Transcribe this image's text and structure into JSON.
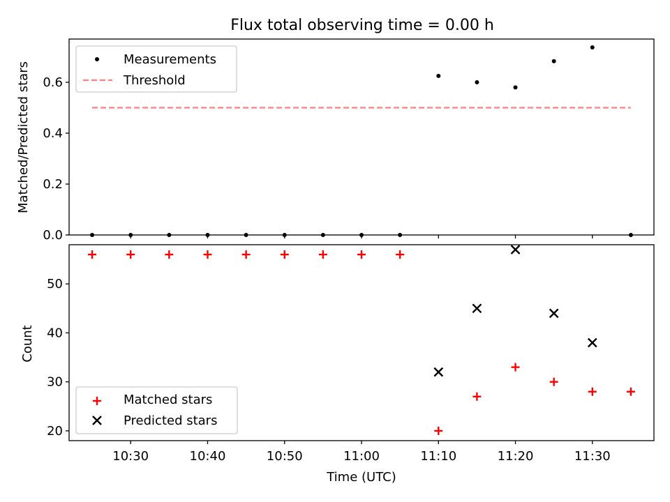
{
  "chart_data": [
    {
      "type": "scatter",
      "title": "Flux total observing time = 0.00 h",
      "xlabel": "",
      "ylabel": "Matched/Predicted stars",
      "ylim": [
        0,
        0.77
      ],
      "yticks": [
        "0.0",
        "0.2",
        "0.4",
        "0.6"
      ],
      "ytick_values": [
        0.0,
        0.2,
        0.4,
        0.6
      ],
      "x_range": [
        "10:22",
        "11:38"
      ],
      "legend_position": "upper left",
      "series": [
        {
          "name": "Measurements",
          "style": "dot",
          "color": "#000000",
          "x": [
            "10:25",
            "10:30",
            "10:35",
            "10:40",
            "10:45",
            "10:50",
            "10:55",
            "11:00",
            "11:05",
            "11:10",
            "11:15",
            "11:20",
            "11:25",
            "11:30",
            "11:35"
          ],
          "y": [
            0,
            0,
            0,
            0,
            0,
            0,
            0,
            0,
            0,
            0.625,
            0.6,
            0.58,
            0.683,
            0.737,
            0
          ]
        },
        {
          "name": "Threshold",
          "style": "dashed-line",
          "color": "#ff7f7f",
          "x": [
            "10:25",
            "11:35"
          ],
          "y": [
            0.5,
            0.5
          ]
        }
      ]
    },
    {
      "type": "scatter",
      "title": "",
      "xlabel": "Time (UTC)",
      "ylabel": "Count",
      "ylim": [
        18,
        58
      ],
      "yticks": [
        "20",
        "30",
        "40",
        "50"
      ],
      "ytick_values": [
        20,
        30,
        40,
        50
      ],
      "xticks": [
        "10:30",
        "10:40",
        "10:50",
        "11:00",
        "11:10",
        "11:20",
        "11:30"
      ],
      "x_range": [
        "10:22",
        "11:38"
      ],
      "legend_position": "lower left",
      "series": [
        {
          "name": "Matched stars",
          "style": "plus",
          "color": "#ff0000",
          "x": [
            "10:25",
            "10:30",
            "10:35",
            "10:40",
            "10:45",
            "10:50",
            "10:55",
            "11:00",
            "11:05",
            "11:10",
            "11:15",
            "11:20",
            "11:25",
            "11:30",
            "11:35"
          ],
          "y": [
            56,
            56,
            56,
            56,
            56,
            56,
            56,
            56,
            56,
            20,
            27,
            33,
            30,
            28,
            28
          ]
        },
        {
          "name": "Predicted stars",
          "style": "x",
          "color": "#000000",
          "x": [
            "11:10",
            "11:15",
            "11:20",
            "11:25",
            "11:30"
          ],
          "y": [
            32,
            45,
            57,
            44,
            38
          ]
        }
      ]
    }
  ]
}
